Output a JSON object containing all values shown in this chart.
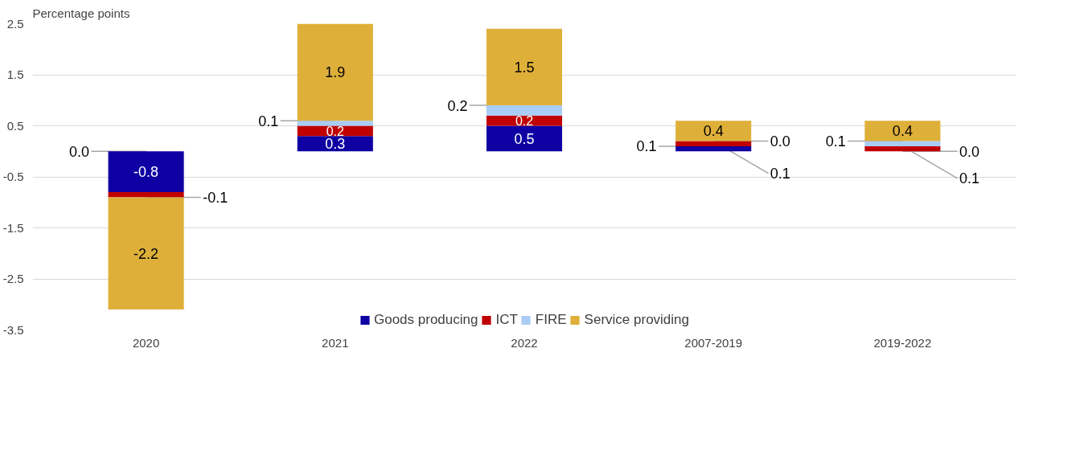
{
  "chart_data": {
    "type": "bar",
    "stacked": true,
    "ylabel": "Percentage points",
    "categories": [
      "2020",
      "2021",
      "2022",
      "2007-2019",
      "2019-2022"
    ],
    "series": [
      {
        "name": "Goods producing",
        "color": "#0e00a3",
        "values": [
          -0.8,
          0.3,
          0.5,
          0.1,
          0.0
        ],
        "value_labels": [
          "-0.8",
          "0.3",
          "0.5",
          null,
          null
        ]
      },
      {
        "name": "ICT",
        "color": "#c00000",
        "values": [
          -0.1,
          0.2,
          0.2,
          0.1,
          0.1
        ],
        "value_labels": [
          null,
          "0.2",
          "0.2",
          null,
          null
        ]
      },
      {
        "name": "FIRE",
        "color": "#a9cdf5",
        "values": [
          0.0,
          0.1,
          0.2,
          0.0,
          0.1
        ],
        "value_labels": [
          null,
          null,
          null,
          null,
          null
        ]
      },
      {
        "name": "Service providing",
        "color": "#deb03a",
        "values": [
          -2.2,
          1.9,
          1.5,
          0.4,
          0.4
        ],
        "value_labels": [
          "-2.2",
          "1.9",
          "1.5",
          "0.4",
          "0.4"
        ]
      }
    ],
    "annotations": [
      {
        "text": "0.0",
        "x": "2020",
        "y": 0.0
      },
      {
        "text": "-0.1",
        "x": "2020",
        "y": -0.9
      },
      {
        "text": "0.1",
        "x": "2021",
        "y": 0.6
      },
      {
        "text": "0.2",
        "x": "2022",
        "y": 0.9
      },
      {
        "text": "0.1",
        "x": "2007-2019",
        "y": 0.1
      },
      {
        "text": "0.0",
        "x": "2007-2019",
        "y": 0.2
      },
      {
        "text": "0.1",
        "x": "2007-2019",
        "y": 0.2
      },
      {
        "text": "0.1",
        "x": "2019-2022",
        "y": 0.2
      },
      {
        "text": "0.0",
        "x": "2019-2022",
        "y": 0.0
      },
      {
        "text": "0.1",
        "x": "2019-2022",
        "y": 0.1
      }
    ],
    "ylim": [
      -3.5,
      2.5
    ],
    "yticks": [
      -3.5,
      -2.5,
      -1.5,
      -0.5,
      0.5,
      1.5,
      2.5
    ],
    "grid": "y",
    "legend": "bottom"
  }
}
